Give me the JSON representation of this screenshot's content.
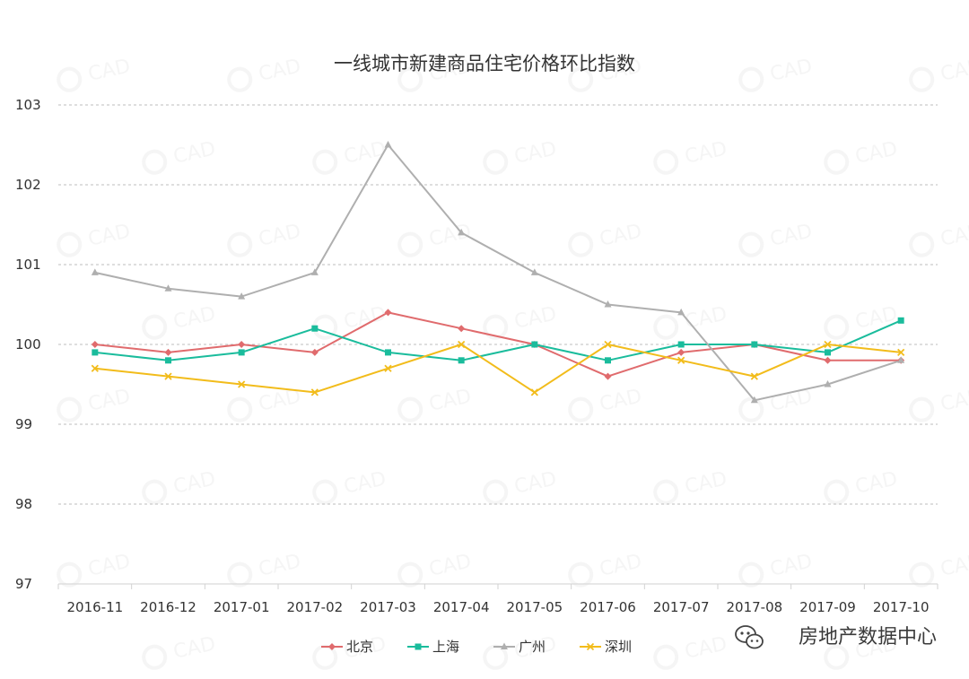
{
  "chart_data": {
    "type": "line",
    "title": "一线城市新建商品住宅价格环比指数",
    "xlabel": "",
    "ylabel": "",
    "categories": [
      "2016-11",
      "2016-12",
      "2017-01",
      "2017-02",
      "2017-03",
      "2017-04",
      "2017-05",
      "2017-06",
      "2017-07",
      "2017-08",
      "2017-09",
      "2017-10"
    ],
    "ylim": [
      97,
      103
    ],
    "yticks": [
      97,
      98,
      99,
      100,
      101,
      102,
      103
    ],
    "grid": "horizontal dashed",
    "legend_position": "bottom-center",
    "series": [
      {
        "name": "北京",
        "color": "#E06B6D",
        "marker": "diamond",
        "values": [
          100.0,
          99.9,
          100.0,
          99.9,
          100.4,
          100.2,
          100.0,
          99.6,
          99.9,
          100.0,
          99.8,
          99.8
        ]
      },
      {
        "name": "上海",
        "color": "#1ABC9C",
        "marker": "square",
        "values": [
          99.9,
          99.8,
          99.9,
          100.2,
          99.9,
          99.8,
          100.0,
          99.8,
          100.0,
          100.0,
          99.9,
          100.3
        ]
      },
      {
        "name": "广州",
        "color": "#AFAFAF",
        "marker": "triangle",
        "values": [
          100.9,
          100.7,
          100.6,
          100.9,
          102.5,
          101.4,
          100.9,
          100.5,
          100.4,
          99.3,
          99.5,
          99.8
        ]
      },
      {
        "name": "深圳",
        "color": "#F2BC1B",
        "marker": "x",
        "values": [
          99.7,
          99.6,
          99.5,
          99.4,
          99.7,
          100.0,
          99.4,
          100.0,
          99.8,
          99.6,
          100.0,
          99.9
        ]
      }
    ]
  },
  "watermark": {
    "logo_text": "CAD",
    "source_text": "房地产数据中心",
    "icon": "wechat-icon"
  }
}
